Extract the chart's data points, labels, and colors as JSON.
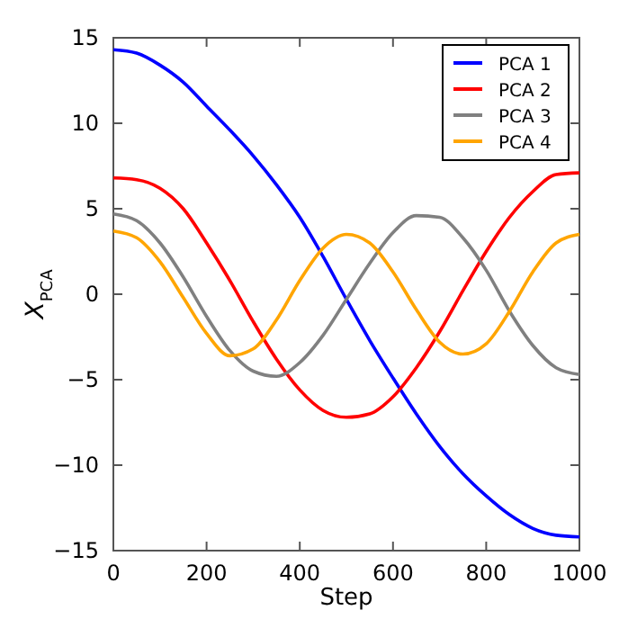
{
  "chart_data": {
    "type": "line",
    "xlabel": "Step",
    "ylabel": "X$_{PCA}$",
    "x": [
      0,
      50,
      100,
      150,
      200,
      250,
      300,
      350,
      400,
      450,
      500,
      550,
      600,
      650,
      700,
      750,
      800,
      850,
      900,
      950,
      1000
    ],
    "xlim": [
      0,
      1000
    ],
    "xticks": [
      0,
      200,
      400,
      600,
      800,
      1000
    ],
    "ylim": [
      -15,
      15
    ],
    "yticks": [
      -15,
      -10,
      -5,
      0,
      5,
      10,
      15
    ],
    "grid": false,
    "legend": "top right",
    "marker": "none",
    "line_style": "solid",
    "series": [
      {
        "name": "PCA 1",
        "color": "#0000ff",
        "values": [
          14.3,
          14.1,
          13.4,
          12.4,
          11.0,
          9.6,
          8.1,
          6.4,
          4.5,
          2.2,
          -0.3,
          -2.7,
          -4.9,
          -7.0,
          -8.9,
          -10.5,
          -11.8,
          -12.9,
          -13.7,
          -14.1,
          -14.2
        ]
      },
      {
        "name": "PCA 2",
        "color": "#ff0000",
        "values": [
          6.8,
          6.7,
          6.2,
          5.0,
          3.0,
          0.8,
          -1.6,
          -3.8,
          -5.6,
          -6.8,
          -7.2,
          -7.0,
          -6.0,
          -4.3,
          -2.2,
          0.2,
          2.5,
          4.5,
          6.0,
          7.0,
          7.1
        ]
      },
      {
        "name": "PCA 3",
        "color": "#808080",
        "values": [
          4.7,
          4.3,
          3.0,
          1.0,
          -1.3,
          -3.3,
          -4.5,
          -4.8,
          -4.0,
          -2.4,
          -0.3,
          1.8,
          3.6,
          4.6,
          4.5,
          3.3,
          1.4,
          -1.0,
          -3.0,
          -4.3,
          -4.7
        ]
      },
      {
        "name": "PCA 4",
        "color": "#ffa500",
        "values": [
          3.7,
          3.3,
          1.9,
          -0.2,
          -2.3,
          -3.6,
          -3.2,
          -1.5,
          0.8,
          2.7,
          3.5,
          3.0,
          1.3,
          -0.9,
          -2.8,
          -3.5,
          -2.9,
          -1.0,
          1.3,
          3.0,
          3.5
        ]
      }
    ]
  }
}
